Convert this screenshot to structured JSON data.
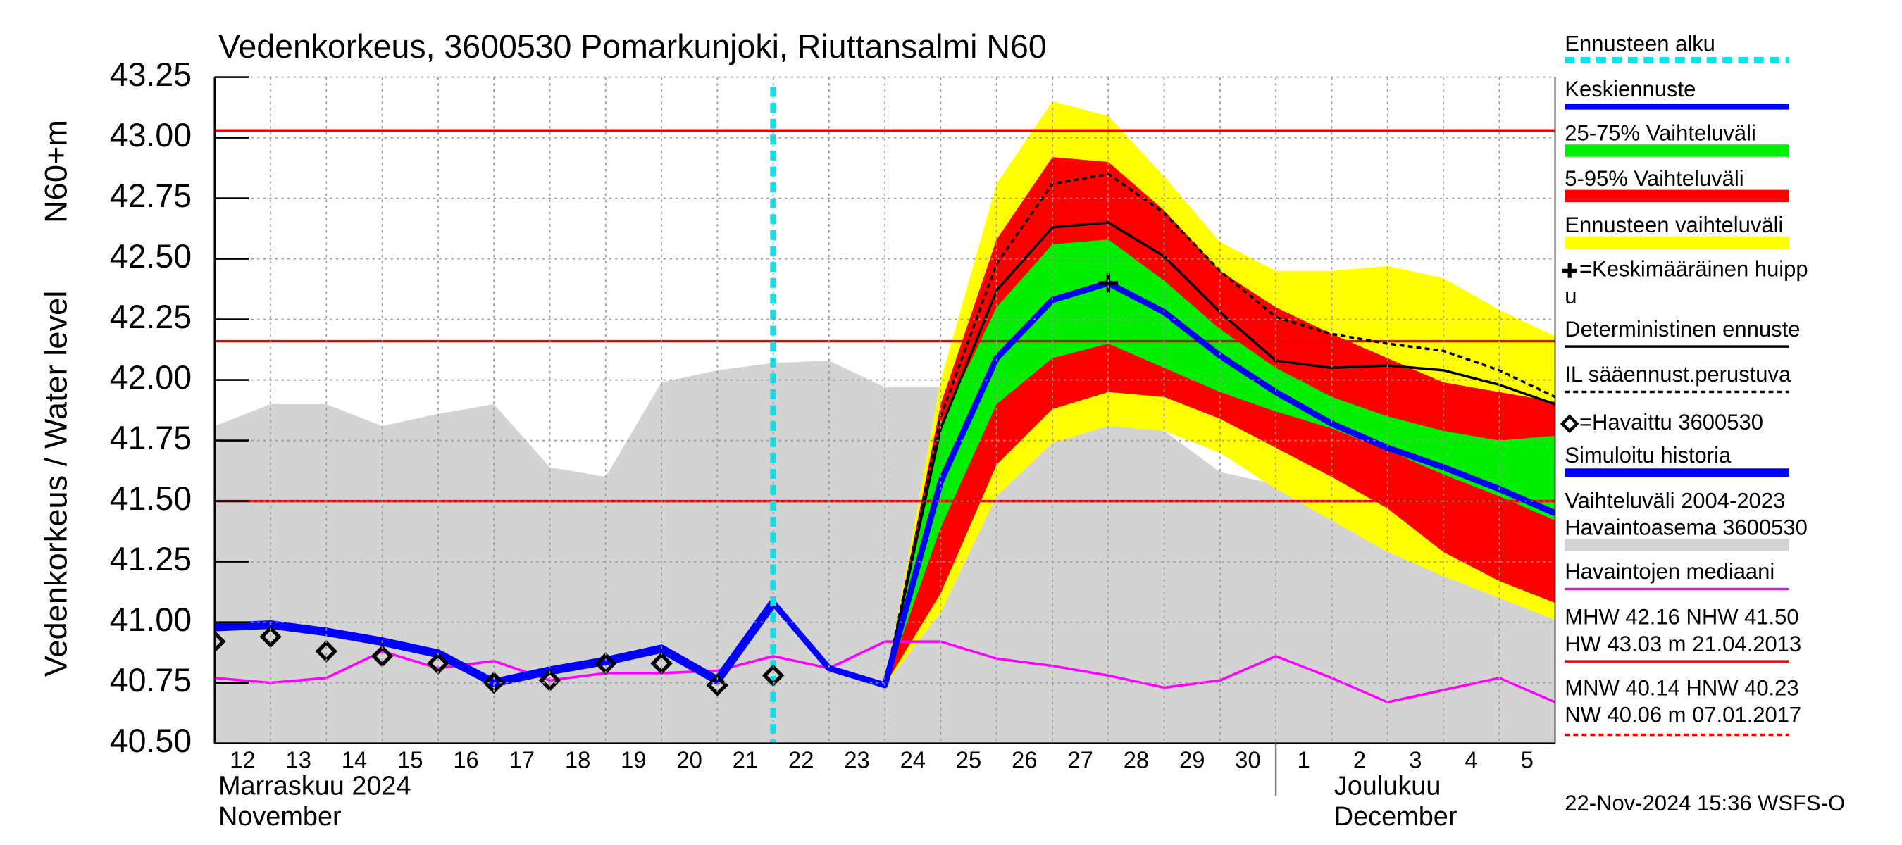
{
  "chart_data": {
    "type": "line",
    "title": "Vedenkorkeus, 3600530 Pomarkunjoki, Riuttansalmi N60",
    "ylabel": "Vedenkorkeus / Water level",
    "ylabel_unit": "N60+m",
    "x": [
      "2024-11-12",
      "2024-11-13",
      "2024-11-14",
      "2024-11-15",
      "2024-11-16",
      "2024-11-17",
      "2024-11-18",
      "2024-11-19",
      "2024-11-20",
      "2024-11-21",
      "2024-11-22",
      "2024-11-23",
      "2024-11-24",
      "2024-11-25",
      "2024-11-26",
      "2024-11-27",
      "2024-11-28",
      "2024-11-29",
      "2024-11-30",
      "2024-12-01",
      "2024-12-02",
      "2024-12-03",
      "2024-12-04",
      "2024-12-05",
      "2024-12-06"
    ],
    "xlim": [
      "2024-11-12",
      "2024-12-06"
    ],
    "xticks": [
      {
        "value": "2024-11-12",
        "label": "12"
      },
      {
        "value": "2024-11-13",
        "label": "13"
      },
      {
        "value": "2024-11-14",
        "label": "14"
      },
      {
        "value": "2024-11-15",
        "label": "15"
      },
      {
        "value": "2024-11-16",
        "label": "16"
      },
      {
        "value": "2024-11-17",
        "label": "17"
      },
      {
        "value": "2024-11-18",
        "label": "18"
      },
      {
        "value": "2024-11-19",
        "label": "19"
      },
      {
        "value": "2024-11-20",
        "label": "20"
      },
      {
        "value": "2024-11-21",
        "label": "21"
      },
      {
        "value": "2024-11-22",
        "label": "22"
      },
      {
        "value": "2024-11-23",
        "label": "23"
      },
      {
        "value": "2024-11-24",
        "label": "24"
      },
      {
        "value": "2024-11-25",
        "label": "25"
      },
      {
        "value": "2024-11-26",
        "label": "26"
      },
      {
        "value": "2024-11-27",
        "label": "27"
      },
      {
        "value": "2024-11-28",
        "label": "28"
      },
      {
        "value": "2024-11-29",
        "label": "29"
      },
      {
        "value": "2024-11-30",
        "label": "30"
      },
      {
        "value": "2024-12-01",
        "label": "1"
      },
      {
        "value": "2024-12-02",
        "label": "2"
      },
      {
        "value": "2024-12-03",
        "label": "3"
      },
      {
        "value": "2024-12-04",
        "label": "4"
      },
      {
        "value": "2024-12-05",
        "label": "5"
      }
    ],
    "month_labels": [
      {
        "x": "2024-11-12",
        "lines": [
          "Marraskuu 2024",
          "November"
        ]
      },
      {
        "x": "2024-12-01",
        "lines": [
          "Joulukuu",
          "December"
        ]
      }
    ],
    "ylim": [
      40.5,
      43.25
    ],
    "yticks": [
      {
        "value": 40.5,
        "label": "40.50"
      },
      40.75,
      {
        "value": 41,
        "label": "41.00"
      },
      41.25,
      {
        "value": 41.5,
        "label": "41.50"
      },
      41.75,
      {
        "value": 42,
        "label": "42.00"
      },
      42.25,
      {
        "value": 42.5,
        "label": "42.50"
      },
      42.75,
      {
        "value": 43,
        "label": "43.00"
      },
      43.25
    ],
    "grid": true,
    "hlines": [
      43.03,
      42.16,
      41.5
    ],
    "hline_color": "#ee0000",
    "forecast_start": {
      "name": "Ennusteen alku",
      "x": "2024-11-22",
      "color": "#00e5ee"
    },
    "series": [
      {
        "name": "Keskiennuste",
        "style": "line",
        "color": "#0000ff",
        "values": [
          null,
          null,
          null,
          null,
          null,
          null,
          null,
          null,
          null,
          null,
          41.08,
          40.81,
          40.74,
          41.58,
          42.09,
          42.33,
          42.4,
          42.28,
          42.1,
          41.95,
          41.82,
          41.72,
          41.64,
          41.55,
          41.45
        ]
      },
      {
        "name": "25-75% Vaihteluväli",
        "style": "band",
        "color": "#00ee00",
        "lower": [
          null,
          null,
          null,
          null,
          null,
          null,
          null,
          null,
          null,
          null,
          null,
          null,
          40.74,
          41.39,
          41.9,
          42.09,
          42.15,
          42.05,
          41.95,
          41.87,
          41.8,
          41.71,
          41.61,
          41.52,
          41.42
        ],
        "upper": [
          null,
          null,
          null,
          null,
          null,
          null,
          null,
          null,
          null,
          null,
          null,
          null,
          40.74,
          41.82,
          42.3,
          42.56,
          42.58,
          42.41,
          42.21,
          42.05,
          41.93,
          41.85,
          41.79,
          41.75,
          41.77
        ]
      },
      {
        "name": "5-95% Vaihteluväli",
        "style": "band",
        "color": "#ff0000",
        "lower": [
          null,
          null,
          null,
          null,
          null,
          null,
          null,
          null,
          null,
          null,
          null,
          null,
          40.74,
          41.12,
          41.65,
          41.88,
          41.95,
          41.93,
          41.84,
          41.72,
          41.6,
          41.47,
          41.29,
          41.17,
          41.08
        ],
        "upper": [
          null,
          null,
          null,
          null,
          null,
          null,
          null,
          null,
          null,
          null,
          null,
          null,
          40.74,
          41.9,
          42.58,
          42.92,
          42.9,
          42.7,
          42.45,
          42.3,
          42.19,
          42.09,
          41.99,
          41.95,
          41.91
        ]
      },
      {
        "name": "Ennusteen vaihteluväli",
        "style": "band",
        "color": "#ffff00",
        "lower": [
          null,
          null,
          null,
          null,
          null,
          null,
          null,
          null,
          null,
          null,
          null,
          null,
          40.74,
          41.04,
          41.52,
          41.74,
          41.81,
          41.79,
          41.7,
          41.55,
          41.42,
          41.29,
          41.19,
          41.1,
          41.01
        ],
        "upper": [
          null,
          null,
          null,
          null,
          null,
          null,
          null,
          null,
          null,
          null,
          null,
          null,
          40.74,
          42.0,
          42.81,
          43.15,
          43.09,
          42.84,
          42.57,
          42.45,
          42.45,
          42.47,
          42.42,
          42.29,
          42.18
        ]
      },
      {
        "name": [
          "=Keskimääräinen huipp",
          "u"
        ],
        "style": "marker",
        "marker": "plus",
        "color": "#000000",
        "x": [
          "2024-11-28"
        ],
        "values": [
          42.4
        ]
      },
      {
        "name": "Deterministinen ennuste",
        "style": "line",
        "color": "#000000",
        "values": [
          null,
          null,
          null,
          null,
          null,
          null,
          null,
          null,
          null,
          40.76,
          41.08,
          40.81,
          40.74,
          41.8,
          42.37,
          42.63,
          42.65,
          42.51,
          42.28,
          42.08,
          42.05,
          42.06,
          42.04,
          41.98,
          41.9
        ]
      },
      {
        "name": "IL sääennust.perustuva",
        "style": "line",
        "dashed": true,
        "color": "#000000",
        "values": [
          null,
          null,
          null,
          null,
          null,
          null,
          null,
          null,
          null,
          null,
          null,
          null,
          40.74,
          41.85,
          42.48,
          42.81,
          42.85,
          42.69,
          42.45,
          42.26,
          42.19,
          42.15,
          42.12,
          42.04,
          41.93
        ]
      },
      {
        "name": "=Havaittu 3600530",
        "style": "marker",
        "marker": "diamond",
        "color": "#000000",
        "values": [
          40.92,
          40.94,
          40.88,
          40.86,
          40.83,
          40.75,
          40.76,
          40.83,
          40.83,
          40.74,
          40.78,
          null,
          null,
          null,
          null,
          null,
          null,
          null,
          null,
          null,
          null,
          null,
          null,
          null,
          null
        ]
      },
      {
        "name": "Simuloitu historia",
        "style": "line",
        "color": "#0000ff",
        "values": [
          40.98,
          40.99,
          40.96,
          40.92,
          40.87,
          40.75,
          40.8,
          40.84,
          40.89,
          40.76,
          41.08,
          null,
          null,
          null,
          null,
          null,
          null,
          null,
          null,
          null,
          null,
          null,
          null,
          null,
          null
        ]
      },
      {
        "name": [
          "Vaihteluväli 2004-2023",
          " Havaintoasema 3600530"
        ],
        "style": "area",
        "color": "#d3d3d3",
        "values": [
          41.81,
          41.9,
          41.9,
          41.81,
          41.86,
          41.9,
          41.64,
          41.6,
          41.99,
          42.04,
          42.07,
          42.08,
          41.97,
          41.97,
          42.03,
          42.05,
          41.95,
          41.79,
          41.62,
          41.57,
          41.51,
          41.42,
          41.38,
          41.38,
          41.77
        ]
      },
      {
        "name": "Havaintojen mediaani",
        "style": "line",
        "color": "#ff00ff",
        "values": [
          40.77,
          40.75,
          40.77,
          40.88,
          40.81,
          40.84,
          40.76,
          40.79,
          40.79,
          40.8,
          40.86,
          40.81,
          40.92,
          40.92,
          40.85,
          40.82,
          40.78,
          40.73,
          40.76,
          40.86,
          40.77,
          40.67,
          40.72,
          40.77,
          40.67
        ]
      }
    ],
    "stats": [
      "MHW  42.16 NHW  41.50",
      "HW  43.03 m 21.04.2013",
      "MNW  40.14 HNW  40.23",
      "NW  40.06 m 07.01.2017"
    ],
    "footer": "22-Nov-2024 15:36 WSFS-O"
  }
}
